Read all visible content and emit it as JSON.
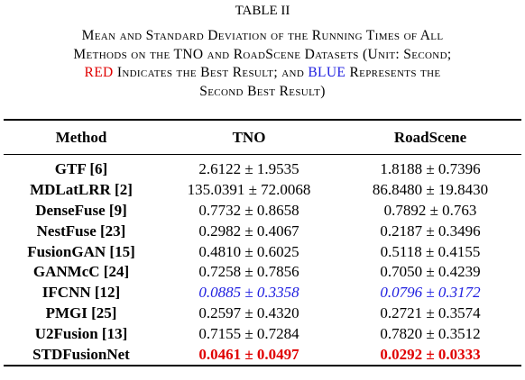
{
  "title": "TABLE II",
  "caption": [
    [
      "Mean and Standard Deviation of the Running Times of All"
    ],
    [
      "Methods on the TNO and RoadScene Datasets (Unit: Second;"
    ],
    [
      "RED",
      " Indicates the Best Result; and ",
      "BLUE",
      " Represents the"
    ],
    [
      "Second Best Result)"
    ]
  ],
  "table": {
    "header": [
      "Method",
      "TNO",
      "RoadScene"
    ],
    "rows": [
      [
        "GTF [6]",
        "2.6122 ± 1.9535",
        "1.8188 ± 0.7396"
      ],
      [
        "MDLatLRR [2]",
        "135.0391 ± 72.0068",
        "86.8480 ± 19.8430"
      ],
      [
        "DenseFuse [9]",
        "0.7732 ± 0.8658",
        "0.7892 ± 0.763"
      ],
      [
        "NestFuse [23]",
        "0.2982 ± 0.4067",
        "0.2187 ± 0.3496"
      ],
      [
        "FusionGAN [15]",
        "0.4810 ± 0.6025",
        "0.5118 ± 0.4155"
      ],
      [
        "GANMcC [24]",
        "0.7258 ± 0.7856",
        "0.7050 ± 0.4239"
      ],
      [
        "IFCNN [12]",
        "0.0885 ± 0.3358",
        "0.0796 ± 0.3172"
      ],
      [
        "PMGI [25]",
        "0.2597 ± 0.4320",
        "0.2721 ± 0.3574"
      ],
      [
        "U2Fusion [13]",
        "0.7155 ± 0.7284",
        "0.7820 ± 0.3512"
      ],
      [
        "STDFusionNet",
        "0.0461 ± 0.0497",
        "0.0292 ± 0.0333"
      ]
    ]
  }
}
